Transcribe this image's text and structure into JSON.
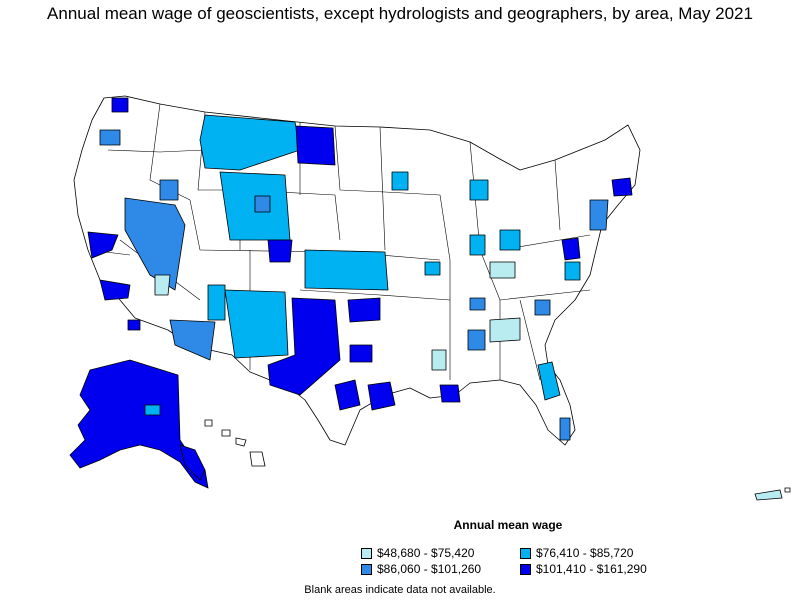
{
  "title": "Annual mean wage of geoscientists, except hydrologists and geographers, by area, May 2021",
  "legend": {
    "title": "Annual mean wage",
    "items": [
      {
        "label": "$48,680 - $75,420",
        "color": "#b8ecf1"
      },
      {
        "label": "$76,410 - $85,720",
        "color": "#00b2f1"
      },
      {
        "label": "$86,060 - $101,260",
        "color": "#2e8ae6"
      },
      {
        "label": "$101,410 - $161,290",
        "color": "#0000ee"
      }
    ]
  },
  "footnote": "Blank areas indicate data not available.",
  "colors": {
    "no_data": "#ffffff",
    "border": "#000000"
  }
}
